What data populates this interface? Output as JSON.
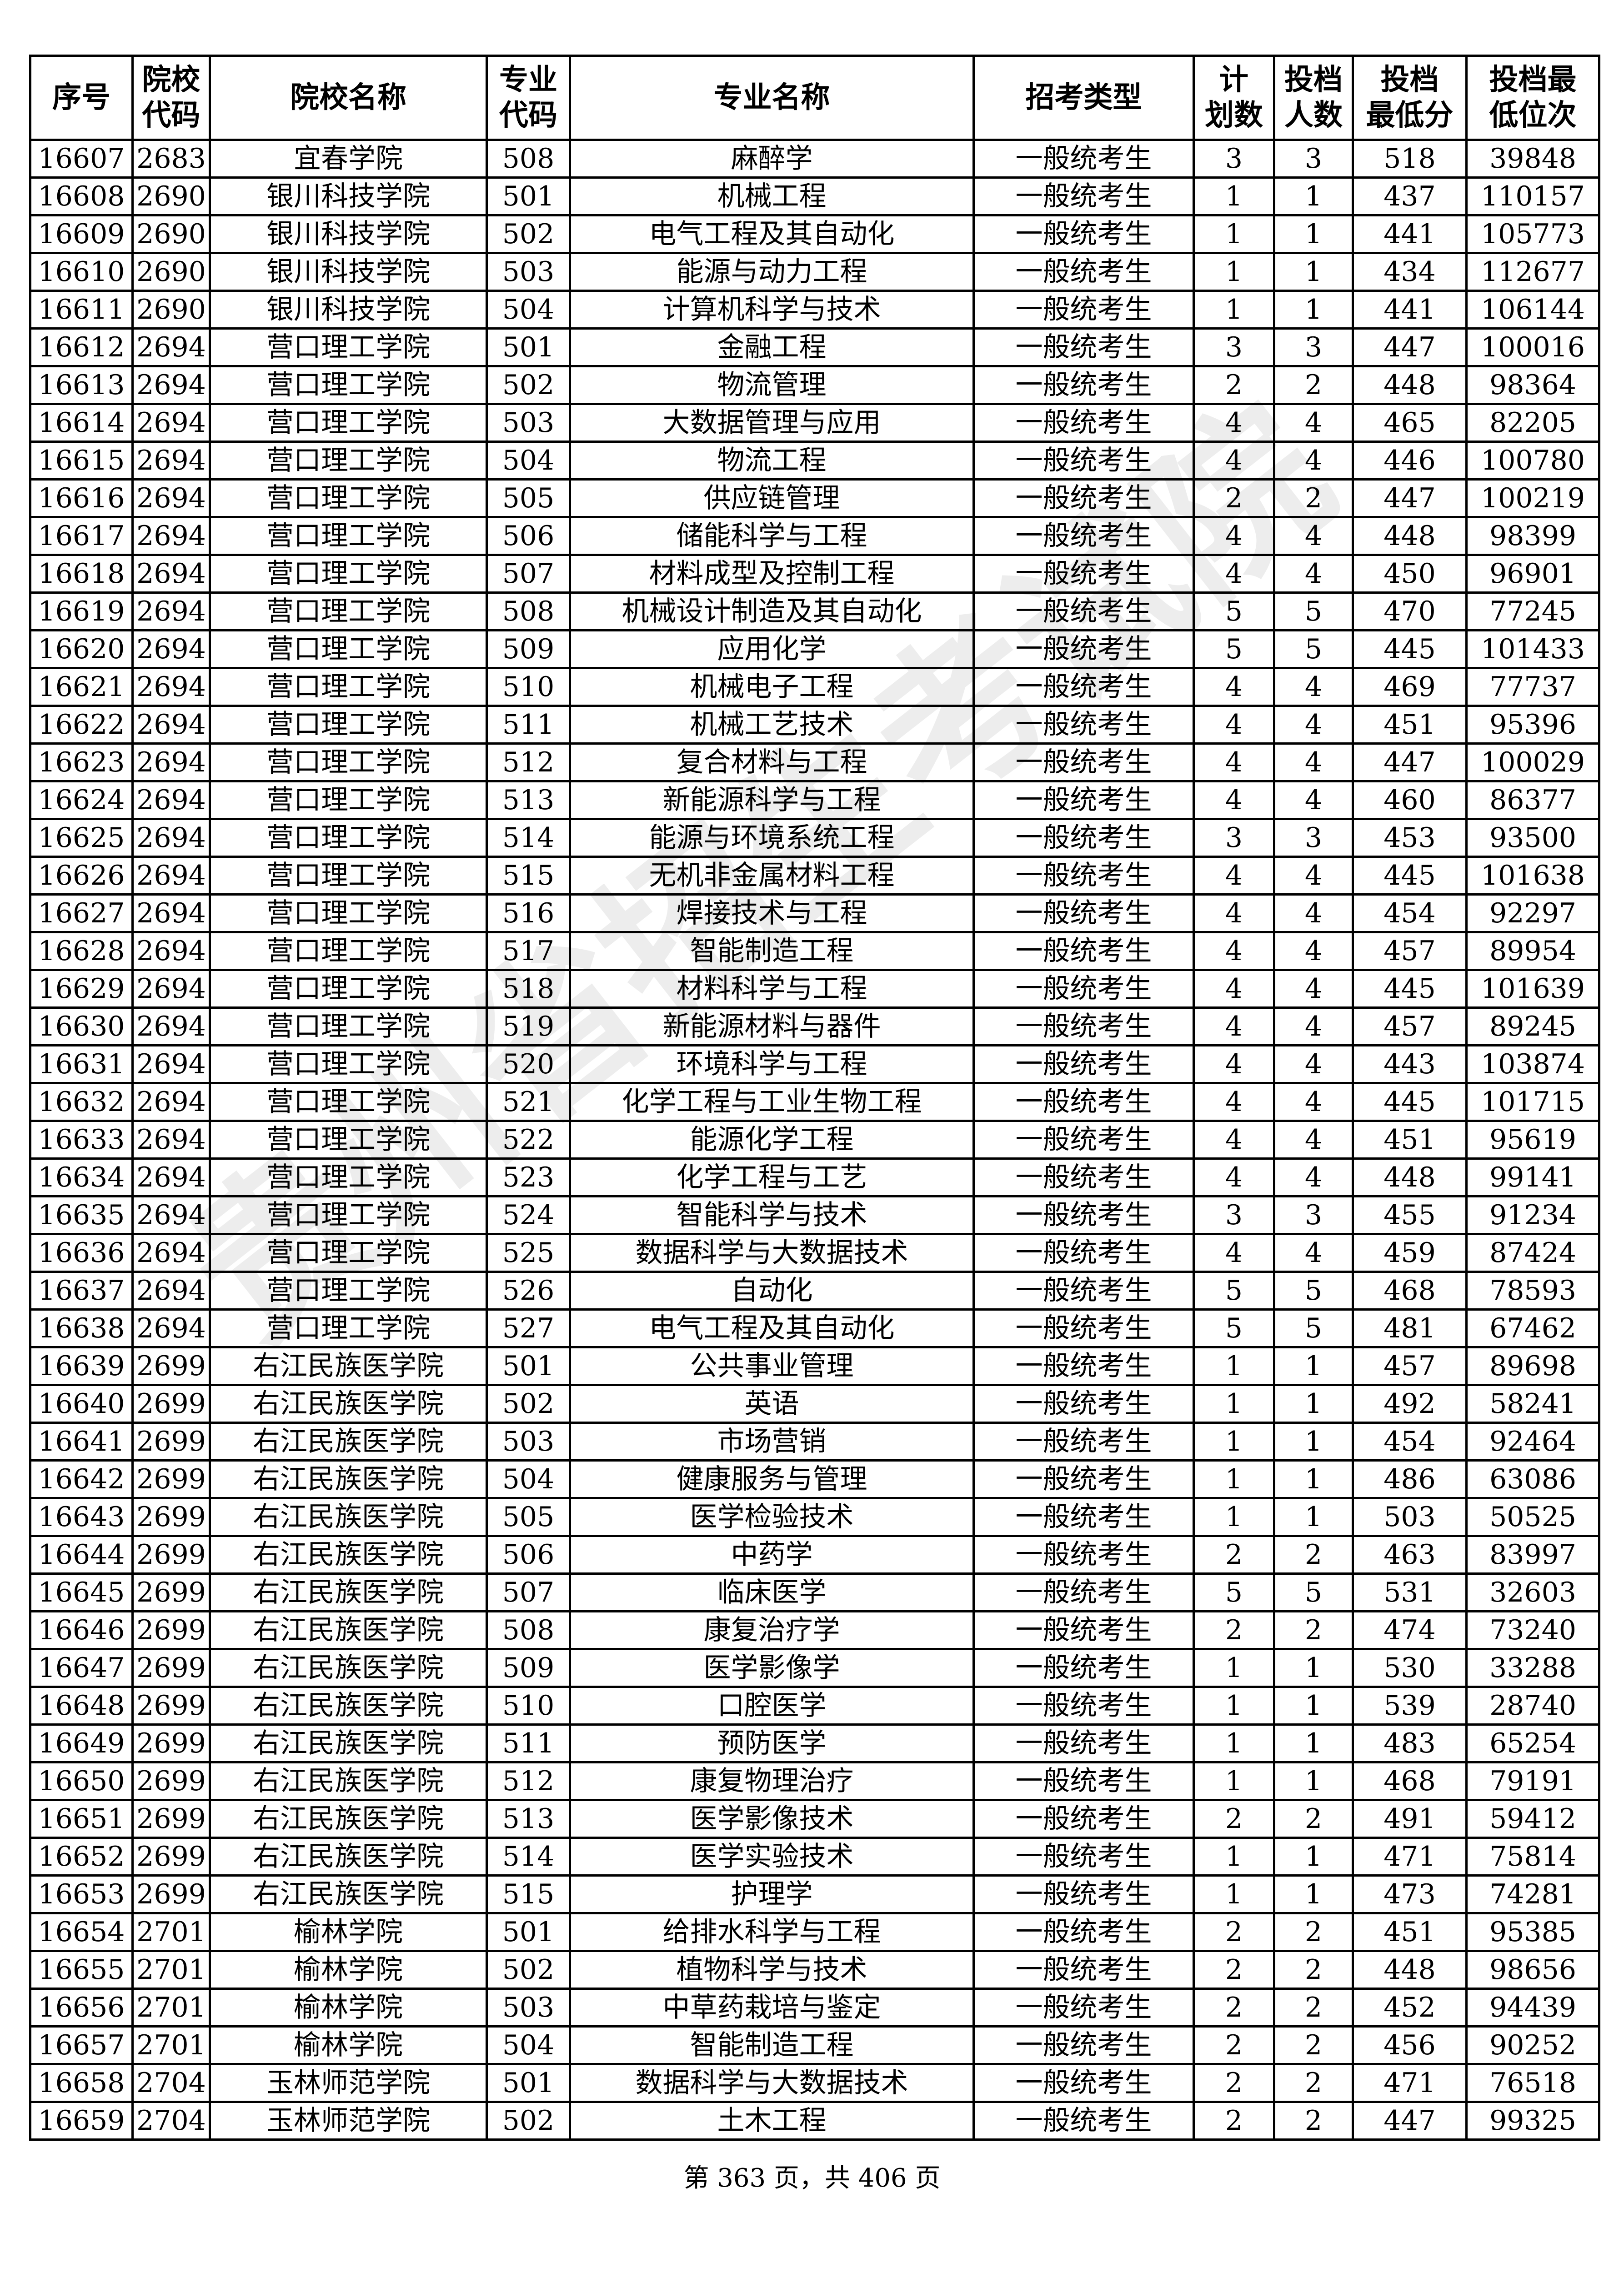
{
  "headers": [
    "序号",
    "院校\n代码",
    "院校名称",
    "专业\n代码",
    "专业名称",
    "招考类型",
    "计\n划数",
    "投档\n人数",
    "投档\n最低分",
    "投档最\n低位次"
  ],
  "rows": [
    [
      "16607",
      "2683",
      "宜春学院",
      "508",
      "麻醉学",
      "一般统考生",
      "3",
      "3",
      "518",
      "39848"
    ],
    [
      "16608",
      "2690",
      "银川科技学院",
      "501",
      "机械工程",
      "一般统考生",
      "1",
      "1",
      "437",
      "110157"
    ],
    [
      "16609",
      "2690",
      "银川科技学院",
      "502",
      "电气工程及其自动化",
      "一般统考生",
      "1",
      "1",
      "441",
      "105773"
    ],
    [
      "16610",
      "2690",
      "银川科技学院",
      "503",
      "能源与动力工程",
      "一般统考生",
      "1",
      "1",
      "434",
      "112677"
    ],
    [
      "16611",
      "2690",
      "银川科技学院",
      "504",
      "计算机科学与技术",
      "一般统考生",
      "1",
      "1",
      "441",
      "106144"
    ],
    [
      "16612",
      "2694",
      "营口理工学院",
      "501",
      "金融工程",
      "一般统考生",
      "3",
      "3",
      "447",
      "100016"
    ],
    [
      "16613",
      "2694",
      "营口理工学院",
      "502",
      "物流管理",
      "一般统考生",
      "2",
      "2",
      "448",
      "98364"
    ],
    [
      "16614",
      "2694",
      "营口理工学院",
      "503",
      "大数据管理与应用",
      "一般统考生",
      "4",
      "4",
      "465",
      "82205"
    ],
    [
      "16615",
      "2694",
      "营口理工学院",
      "504",
      "物流工程",
      "一般统考生",
      "4",
      "4",
      "446",
      "100780"
    ],
    [
      "16616",
      "2694",
      "营口理工学院",
      "505",
      "供应链管理",
      "一般统考生",
      "2",
      "2",
      "447",
      "100219"
    ],
    [
      "16617",
      "2694",
      "营口理工学院",
      "506",
      "储能科学与工程",
      "一般统考生",
      "4",
      "4",
      "448",
      "98399"
    ],
    [
      "16618",
      "2694",
      "营口理工学院",
      "507",
      "材料成型及控制工程",
      "一般统考生",
      "4",
      "4",
      "450",
      "96901"
    ],
    [
      "16619",
      "2694",
      "营口理工学院",
      "508",
      "机械设计制造及其自动化",
      "一般统考生",
      "5",
      "5",
      "470",
      "77245"
    ],
    [
      "16620",
      "2694",
      "营口理工学院",
      "509",
      "应用化学",
      "一般统考生",
      "5",
      "5",
      "445",
      "101433"
    ],
    [
      "16621",
      "2694",
      "营口理工学院",
      "510",
      "机械电子工程",
      "一般统考生",
      "4",
      "4",
      "469",
      "77737"
    ],
    [
      "16622",
      "2694",
      "营口理工学院",
      "511",
      "机械工艺技术",
      "一般统考生",
      "4",
      "4",
      "451",
      "95396"
    ],
    [
      "16623",
      "2694",
      "营口理工学院",
      "512",
      "复合材料与工程",
      "一般统考生",
      "4",
      "4",
      "447",
      "100029"
    ],
    [
      "16624",
      "2694",
      "营口理工学院",
      "513",
      "新能源科学与工程",
      "一般统考生",
      "4",
      "4",
      "460",
      "86377"
    ],
    [
      "16625",
      "2694",
      "营口理工学院",
      "514",
      "能源与环境系统工程",
      "一般统考生",
      "3",
      "3",
      "453",
      "93500"
    ],
    [
      "16626",
      "2694",
      "营口理工学院",
      "515",
      "无机非金属材料工程",
      "一般统考生",
      "4",
      "4",
      "445",
      "101638"
    ],
    [
      "16627",
      "2694",
      "营口理工学院",
      "516",
      "焊接技术与工程",
      "一般统考生",
      "4",
      "4",
      "454",
      "92297"
    ],
    [
      "16628",
      "2694",
      "营口理工学院",
      "517",
      "智能制造工程",
      "一般统考生",
      "4",
      "4",
      "457",
      "89954"
    ],
    [
      "16629",
      "2694",
      "营口理工学院",
      "518",
      "材料科学与工程",
      "一般统考生",
      "4",
      "4",
      "445",
      "101639"
    ],
    [
      "16630",
      "2694",
      "营口理工学院",
      "519",
      "新能源材料与器件",
      "一般统考生",
      "4",
      "4",
      "457",
      "89245"
    ],
    [
      "16631",
      "2694",
      "营口理工学院",
      "520",
      "环境科学与工程",
      "一般统考生",
      "4",
      "4",
      "443",
      "103874"
    ],
    [
      "16632",
      "2694",
      "营口理工学院",
      "521",
      "化学工程与工业生物工程",
      "一般统考生",
      "4",
      "4",
      "445",
      "101715"
    ],
    [
      "16633",
      "2694",
      "营口理工学院",
      "522",
      "能源化学工程",
      "一般统考生",
      "4",
      "4",
      "451",
      "95619"
    ],
    [
      "16634",
      "2694",
      "营口理工学院",
      "523",
      "化学工程与工艺",
      "一般统考生",
      "4",
      "4",
      "448",
      "99141"
    ],
    [
      "16635",
      "2694",
      "营口理工学院",
      "524",
      "智能科学与技术",
      "一般统考生",
      "3",
      "3",
      "455",
      "91234"
    ],
    [
      "16636",
      "2694",
      "营口理工学院",
      "525",
      "数据科学与大数据技术",
      "一般统考生",
      "4",
      "4",
      "459",
      "87424"
    ],
    [
      "16637",
      "2694",
      "营口理工学院",
      "526",
      "自动化",
      "一般统考生",
      "5",
      "5",
      "468",
      "78593"
    ],
    [
      "16638",
      "2694",
      "营口理工学院",
      "527",
      "电气工程及其自动化",
      "一般统考生",
      "5",
      "5",
      "481",
      "67462"
    ],
    [
      "16639",
      "2699",
      "右江民族医学院",
      "501",
      "公共事业管理",
      "一般统考生",
      "1",
      "1",
      "457",
      "89698"
    ],
    [
      "16640",
      "2699",
      "右江民族医学院",
      "502",
      "英语",
      "一般统考生",
      "1",
      "1",
      "492",
      "58241"
    ],
    [
      "16641",
      "2699",
      "右江民族医学院",
      "503",
      "市场营销",
      "一般统考生",
      "1",
      "1",
      "454",
      "92464"
    ],
    [
      "16642",
      "2699",
      "右江民族医学院",
      "504",
      "健康服务与管理",
      "一般统考生",
      "1",
      "1",
      "486",
      "63086"
    ],
    [
      "16643",
      "2699",
      "右江民族医学院",
      "505",
      "医学检验技术",
      "一般统考生",
      "1",
      "1",
      "503",
      "50525"
    ],
    [
      "16644",
      "2699",
      "右江民族医学院",
      "506",
      "中药学",
      "一般统考生",
      "2",
      "2",
      "463",
      "83997"
    ],
    [
      "16645",
      "2699",
      "右江民族医学院",
      "507",
      "临床医学",
      "一般统考生",
      "5",
      "5",
      "531",
      "32603"
    ],
    [
      "16646",
      "2699",
      "右江民族医学院",
      "508",
      "康复治疗学",
      "一般统考生",
      "2",
      "2",
      "474",
      "73240"
    ],
    [
      "16647",
      "2699",
      "右江民族医学院",
      "509",
      "医学影像学",
      "一般统考生",
      "1",
      "1",
      "530",
      "33288"
    ],
    [
      "16648",
      "2699",
      "右江民族医学院",
      "510",
      "口腔医学",
      "一般统考生",
      "1",
      "1",
      "539",
      "28740"
    ],
    [
      "16649",
      "2699",
      "右江民族医学院",
      "511",
      "预防医学",
      "一般统考生",
      "1",
      "1",
      "483",
      "65254"
    ],
    [
      "16650",
      "2699",
      "右江民族医学院",
      "512",
      "康复物理治疗",
      "一般统考生",
      "1",
      "1",
      "468",
      "79191"
    ],
    [
      "16651",
      "2699",
      "右江民族医学院",
      "513",
      "医学影像技术",
      "一般统考生",
      "2",
      "2",
      "491",
      "59412"
    ],
    [
      "16652",
      "2699",
      "右江民族医学院",
      "514",
      "医学实验技术",
      "一般统考生",
      "1",
      "1",
      "471",
      "75814"
    ],
    [
      "16653",
      "2699",
      "右江民族医学院",
      "515",
      "护理学",
      "一般统考生",
      "1",
      "1",
      "473",
      "74281"
    ],
    [
      "16654",
      "2701",
      "榆林学院",
      "501",
      "给排水科学与工程",
      "一般统考生",
      "2",
      "2",
      "451",
      "95385"
    ],
    [
      "16655",
      "2701",
      "榆林学院",
      "502",
      "植物科学与技术",
      "一般统考生",
      "2",
      "2",
      "448",
      "98656"
    ],
    [
      "16656",
      "2701",
      "榆林学院",
      "503",
      "中草药栽培与鉴定",
      "一般统考生",
      "2",
      "2",
      "452",
      "94439"
    ],
    [
      "16657",
      "2701",
      "榆林学院",
      "504",
      "智能制造工程",
      "一般统考生",
      "2",
      "2",
      "456",
      "90252"
    ],
    [
      "16658",
      "2704",
      "玉林师范学院",
      "501",
      "数据科学与大数据技术",
      "一般统考生",
      "2",
      "2",
      "471",
      "76518"
    ],
    [
      "16659",
      "2704",
      "玉林师范学院",
      "502",
      "土木工程",
      "一般统考生",
      "2",
      "2",
      "447",
      "99325"
    ]
  ],
  "footer": "第 363 页，共 406 页",
  "watermark": "贵州省招生考试院"
}
